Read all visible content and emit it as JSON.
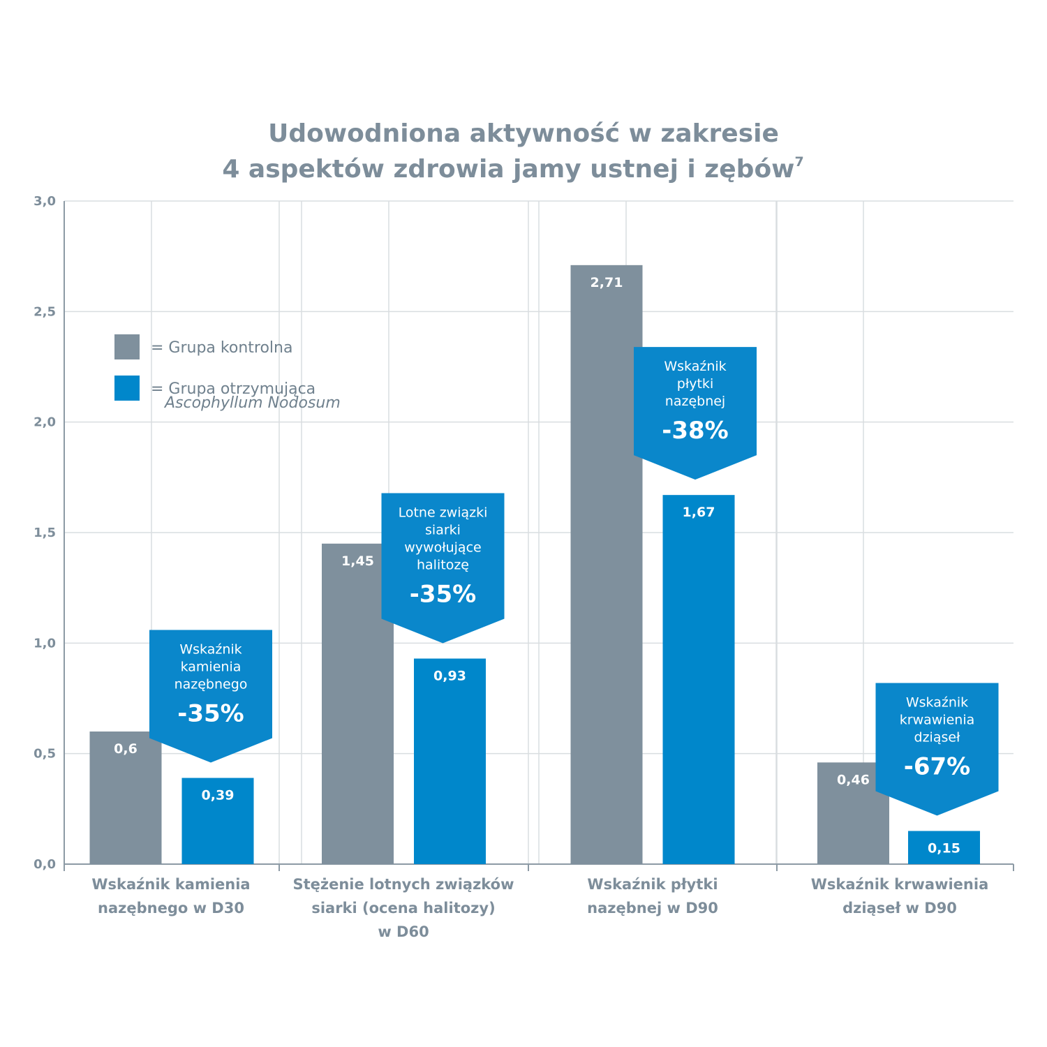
{
  "chart_data": {
    "type": "bar",
    "title_line1": "Udowodniona aktywność w zakresie",
    "title_line2": "4 aspektów zdrowia jamy ustnej i zębów",
    "title_sup": "7",
    "ylim": [
      0,
      3.0
    ],
    "yticks": [
      "0,0",
      "0,5",
      "1,0",
      "1,5",
      "2,0",
      "2,5",
      "3,0"
    ],
    "grid": true,
    "legend_position": "upper-left",
    "categories": [
      [
        "Wskaźnik kamienia",
        "nazębnego w D30"
      ],
      [
        "Stężenie lotnych związków",
        "siarki (ocena halitozy)",
        "w D60"
      ],
      [
        "Wskaźnik płytki",
        "nazębnej w D90"
      ],
      [
        "Wskaźnik krwawienia",
        "dziąseł w D90"
      ]
    ],
    "series": [
      {
        "name_line1": "= Grupa kontrolna",
        "name_line2": "",
        "color": "#7f909d",
        "values": [
          0.6,
          1.45,
          2.71,
          0.46
        ],
        "labels": [
          "0,6",
          "1,45",
          "2,71",
          "0,46"
        ]
      },
      {
        "name_line1": "= Grupa otrzymująca",
        "name_line2": "Ascophyllum Nodosum",
        "color": "#0087cb",
        "values": [
          0.39,
          0.93,
          1.67,
          0.15
        ],
        "labels": [
          "0,39",
          "0,93",
          "1,67",
          "0,15"
        ]
      }
    ],
    "callouts": [
      {
        "lines": [
          "Wskaźnik",
          "kamienia",
          "nazębnego"
        ],
        "pct": "-35%"
      },
      {
        "lines": [
          "Lotne związki",
          "siarki",
          "wywołujące",
          "halitozę"
        ],
        "pct": "-35%"
      },
      {
        "lines": [
          "Wskaźnik",
          "płytki",
          "nazębnej"
        ],
        "pct": "-38%"
      },
      {
        "lines": [
          "Wskaźnik",
          "krwawienia",
          "dziąseł"
        ],
        "pct": "-67%"
      }
    ],
    "callout_color": "#0a87cb"
  }
}
